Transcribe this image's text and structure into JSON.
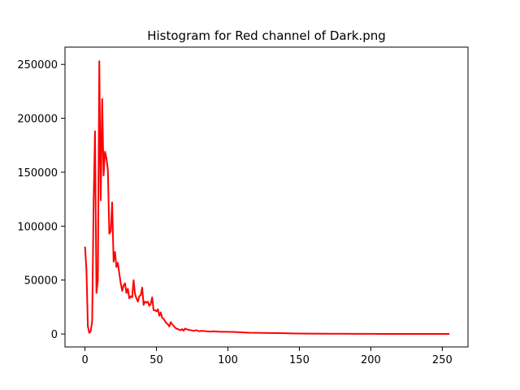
{
  "chart_data": {
    "type": "line",
    "title": "Histogram for Red channel of Dark.png",
    "xlabel": "",
    "ylabel": "",
    "xlim": [
      -14,
      268
    ],
    "ylim": [
      -12000,
      266000
    ],
    "xticks": [
      0,
      50,
      100,
      150,
      200,
      250
    ],
    "yticks": [
      0,
      50000,
      100000,
      150000,
      200000,
      250000
    ],
    "grid": false,
    "legend": "none",
    "series": [
      {
        "color": "#ff0000",
        "points": [
          [
            0,
            81000
          ],
          [
            1,
            60000
          ],
          [
            2,
            7000
          ],
          [
            3,
            1000
          ],
          [
            4,
            2500
          ],
          [
            5,
            12000
          ],
          [
            6,
            120000
          ],
          [
            7,
            188000
          ],
          [
            8,
            38000
          ],
          [
            9,
            50000
          ],
          [
            10,
            253000
          ],
          [
            11,
            124000
          ],
          [
            12,
            218000
          ],
          [
            13,
            147000
          ],
          [
            14,
            169000
          ],
          [
            15,
            163000
          ],
          [
            16,
            152000
          ],
          [
            17,
            93000
          ],
          [
            18,
            95000
          ],
          [
            19,
            122000
          ],
          [
            20,
            67000
          ],
          [
            21,
            76000
          ],
          [
            22,
            62000
          ],
          [
            23,
            66000
          ],
          [
            24,
            56000
          ],
          [
            25,
            47000
          ],
          [
            26,
            40000
          ],
          [
            27,
            45000
          ],
          [
            28,
            47000
          ],
          [
            29,
            38000
          ],
          [
            30,
            42000
          ],
          [
            31,
            33000
          ],
          [
            32,
            35000
          ],
          [
            33,
            34000
          ],
          [
            34,
            50000
          ],
          [
            35,
            37000
          ],
          [
            36,
            33000
          ],
          [
            37,
            30000
          ],
          [
            38,
            35000
          ],
          [
            39,
            36000
          ],
          [
            40,
            43000
          ],
          [
            41,
            27000
          ],
          [
            42,
            30000
          ],
          [
            43,
            29000
          ],
          [
            44,
            30000
          ],
          [
            45,
            26000
          ],
          [
            46,
            28000
          ],
          [
            47,
            34000
          ],
          [
            48,
            22000
          ],
          [
            49,
            22000
          ],
          [
            50,
            21000
          ],
          [
            51,
            23000
          ],
          [
            52,
            17000
          ],
          [
            53,
            20000
          ],
          [
            54,
            15000
          ],
          [
            55,
            14000
          ],
          [
            56,
            12000
          ],
          [
            57,
            10000
          ],
          [
            58,
            9000
          ],
          [
            59,
            7000
          ],
          [
            60,
            11000
          ],
          [
            61,
            9000
          ],
          [
            62,
            7500
          ],
          [
            63,
            6000
          ],
          [
            64,
            5000
          ],
          [
            65,
            4500
          ],
          [
            66,
            4000
          ],
          [
            67,
            3500
          ],
          [
            68,
            4500
          ],
          [
            69,
            3000
          ],
          [
            70,
            5000
          ],
          [
            72,
            4000
          ],
          [
            74,
            3500
          ],
          [
            76,
            3000
          ],
          [
            78,
            3500
          ],
          [
            80,
            2500
          ],
          [
            82,
            3000
          ],
          [
            85,
            2500
          ],
          [
            88,
            2200
          ],
          [
            90,
            2500
          ],
          [
            95,
            2000
          ],
          [
            100,
            2000
          ],
          [
            105,
            1800
          ],
          [
            110,
            1500
          ],
          [
            115,
            1200
          ],
          [
            120,
            1100
          ],
          [
            125,
            1000
          ],
          [
            130,
            900
          ],
          [
            135,
            800
          ],
          [
            140,
            700
          ],
          [
            145,
            500
          ],
          [
            150,
            400
          ],
          [
            160,
            300
          ],
          [
            170,
            250
          ],
          [
            180,
            200
          ],
          [
            190,
            150
          ],
          [
            200,
            120
          ],
          [
            210,
            100
          ],
          [
            220,
            80
          ],
          [
            230,
            60
          ],
          [
            240,
            50
          ],
          [
            255,
            40
          ]
        ]
      }
    ]
  }
}
